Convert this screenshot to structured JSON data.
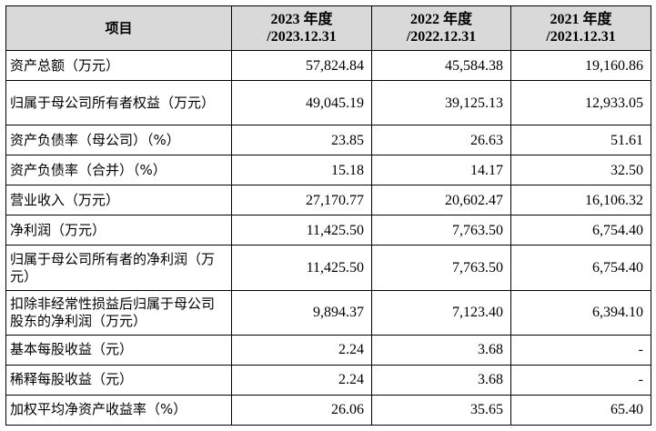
{
  "table": {
    "headers": {
      "item": "项目",
      "cols": [
        {
          "year": "2023 年度",
          "date": "/2023.12.31"
        },
        {
          "year": "2022 年度",
          "date": "/2022.12.31"
        },
        {
          "year": "2021 年度",
          "date": "/2021.12.31"
        }
      ]
    },
    "rows": [
      {
        "label": "资产总额（万元）",
        "values": [
          "57,824.84",
          "45,584.38",
          "19,160.86"
        ]
      },
      {
        "label": "归属于母公司所有者权益（万元）",
        "values": [
          "49,045.19",
          "39,125.13",
          "12,933.05"
        ]
      },
      {
        "label": "资产负债率（母公司）（%）",
        "values": [
          "23.85",
          "26.63",
          "51.61"
        ]
      },
      {
        "label": "资产负债率（合并）（%）",
        "values": [
          "15.18",
          "14.17",
          "32.50"
        ]
      },
      {
        "label": "营业收入（万元）",
        "values": [
          "27,170.77",
          "20,602.47",
          "16,106.32"
        ]
      },
      {
        "label": "净利润（万元）",
        "values": [
          "11,425.50",
          "7,763.50",
          "6,754.40"
        ]
      },
      {
        "label": "归属于母公司所有者的净利润（万元）",
        "values": [
          "11,425.50",
          "7,763.50",
          "6,754.40"
        ]
      },
      {
        "label": "扣除非经常性损益后归属于母公司股东的净利润（万元）",
        "values": [
          "9,894.37",
          "7,123.40",
          "6,394.10"
        ]
      },
      {
        "label": "基本每股收益（元）",
        "values": [
          "2.24",
          "3.68",
          "-"
        ]
      },
      {
        "label": "稀释每股收益（元）",
        "values": [
          "2.24",
          "3.68",
          "-"
        ]
      },
      {
        "label": "加权平均净资产收益率（%）",
        "values": [
          "26.06",
          "35.65",
          "65.40"
        ]
      }
    ]
  }
}
